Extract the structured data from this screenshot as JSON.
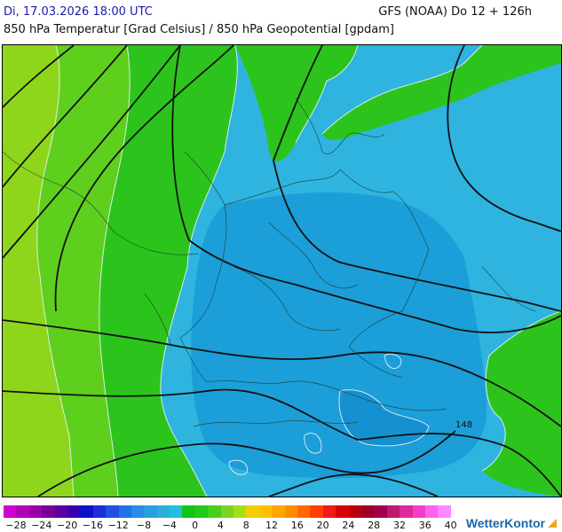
{
  "header": {
    "datetime": "Di, 17.03.2026 18:00 UTC",
    "model": "GFS (NOAA) Do 12 + 126h",
    "subtitle": "850 hPa Temperatur [Grad Celsius] / 850 hPa Geopotential [gpdam]"
  },
  "map": {
    "region": "Germany / Central Europe",
    "contour_labels": [
      "148"
    ],
    "fill_colors": {
      "light_green": "#8ed61c",
      "green": "#5fcf1e",
      "dark_green": "#2cc41c",
      "blue": "#1c9ed8",
      "light_blue": "#2fb4e0"
    }
  },
  "legend": {
    "colors": [
      "#d000d0",
      "#b000b8",
      "#9a00a8",
      "#7a0098",
      "#5a00a0",
      "#3a00b0",
      "#1010c8",
      "#1830d8",
      "#2050e0",
      "#2070e6",
      "#2a8be6",
      "#2a9fe0",
      "#2aaed8",
      "#26bedf",
      "#13c414",
      "#22c91b",
      "#47cf1e",
      "#7ad51f",
      "#a8db1f",
      "#f0d000",
      "#ffc000",
      "#ffa800",
      "#ff8c00",
      "#ff6a00",
      "#ff4000",
      "#f01818",
      "#d80000",
      "#b80010",
      "#a00028",
      "#a0004a",
      "#c01870",
      "#e02898",
      "#f040c8",
      "#ff60f0",
      "#ff88ff"
    ],
    "tick_labels": [
      "-28",
      "-24",
      "-20",
      "-16",
      "-12",
      "-8",
      "-4",
      "0",
      "4",
      "8",
      "12",
      "16",
      "20",
      "24",
      "28",
      "32",
      "36",
      "40"
    ]
  },
  "brand": "WetterKontor"
}
